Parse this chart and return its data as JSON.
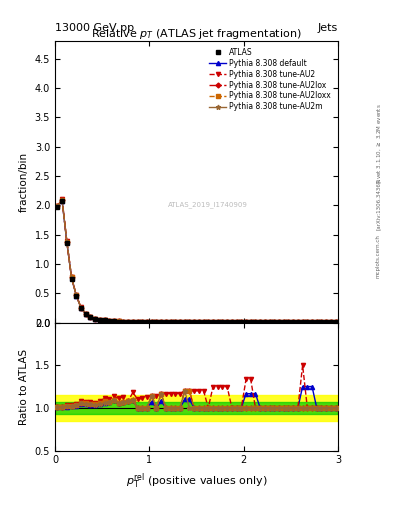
{
  "title": "Relative $p_T$ (ATLAS jet fragmentation)",
  "header_left": "13000 GeV pp",
  "header_right": "Jets",
  "ylabel_main": "fraction/bin",
  "ylabel_ratio": "Ratio to ATLAS",
  "xlabel": "$p_{\\textrm{T}}^{\\textrm{rel}}$ (positive values only)",
  "watermark": "ATLAS_2019_I1740909",
  "ylim_main": [
    0,
    4.8
  ],
  "ylim_ratio": [
    0.5,
    2.0
  ],
  "xlim": [
    0,
    3.0
  ],
  "yticks_main": [
    0.0,
    0.5,
    1.0,
    1.5,
    2.0,
    2.5,
    3.0,
    3.5,
    4.0,
    4.5
  ],
  "yticks_ratio": [
    0.5,
    1.0,
    1.5,
    2.0
  ],
  "xticks": [
    0,
    1,
    2,
    3
  ],
  "x_data": [
    0.025,
    0.075,
    0.125,
    0.175,
    0.225,
    0.275,
    0.325,
    0.375,
    0.425,
    0.475,
    0.525,
    0.575,
    0.625,
    0.675,
    0.725,
    0.775,
    0.825,
    0.875,
    0.925,
    0.975,
    1.025,
    1.075,
    1.125,
    1.175,
    1.225,
    1.275,
    1.325,
    1.375,
    1.425,
    1.475,
    1.525,
    1.575,
    1.625,
    1.675,
    1.725,
    1.775,
    1.825,
    1.875,
    1.925,
    1.975,
    2.025,
    2.075,
    2.125,
    2.175,
    2.225,
    2.275,
    2.325,
    2.375,
    2.425,
    2.475,
    2.525,
    2.575,
    2.625,
    2.675,
    2.725,
    2.775,
    2.825,
    2.875,
    2.925,
    2.975
  ],
  "atlas_y": [
    1.97,
    2.07,
    1.35,
    0.75,
    0.45,
    0.24,
    0.14,
    0.09,
    0.065,
    0.048,
    0.036,
    0.028,
    0.022,
    0.018,
    0.015,
    0.013,
    0.011,
    0.01,
    0.009,
    0.008,
    0.007,
    0.007,
    0.006,
    0.006,
    0.006,
    0.006,
    0.006,
    0.005,
    0.005,
    0.005,
    0.005,
    0.005,
    0.005,
    0.004,
    0.004,
    0.004,
    0.004,
    0.004,
    0.004,
    0.004,
    0.003,
    0.003,
    0.003,
    0.003,
    0.003,
    0.003,
    0.003,
    0.003,
    0.003,
    0.003,
    0.003,
    0.003,
    0.002,
    0.002,
    0.002,
    0.002,
    0.002,
    0.002,
    0.002,
    0.002
  ],
  "pythia_default_y": [
    1.98,
    2.08,
    1.37,
    0.763,
    0.461,
    0.252,
    0.146,
    0.093,
    0.067,
    0.05,
    0.038,
    0.03,
    0.024,
    0.019,
    0.016,
    0.014,
    0.012,
    0.01,
    0.009,
    0.008,
    0.0075,
    0.007,
    0.0065,
    0.006,
    0.006,
    0.006,
    0.006,
    0.0055,
    0.0055,
    0.005,
    0.005,
    0.005,
    0.005,
    0.004,
    0.004,
    0.004,
    0.004,
    0.004,
    0.004,
    0.004,
    0.0035,
    0.0035,
    0.0035,
    0.003,
    0.003,
    0.003,
    0.003,
    0.003,
    0.003,
    0.003,
    0.003,
    0.003,
    0.0025,
    0.0025,
    0.0025,
    0.002,
    0.002,
    0.002,
    0.002,
    0.002
  ],
  "pythia_au2_y": [
    1.99,
    2.1,
    1.39,
    0.775,
    0.473,
    0.258,
    0.15,
    0.096,
    0.069,
    0.052,
    0.04,
    0.031,
    0.025,
    0.02,
    0.017,
    0.014,
    0.013,
    0.011,
    0.01,
    0.009,
    0.008,
    0.008,
    0.007,
    0.007,
    0.007,
    0.007,
    0.007,
    0.006,
    0.006,
    0.006,
    0.006,
    0.006,
    0.005,
    0.005,
    0.005,
    0.005,
    0.005,
    0.004,
    0.004,
    0.004,
    0.004,
    0.004,
    0.003,
    0.003,
    0.003,
    0.003,
    0.003,
    0.003,
    0.003,
    0.003,
    0.003,
    0.003,
    0.003,
    0.002,
    0.002,
    0.002,
    0.002,
    0.002,
    0.002,
    0.002
  ],
  "pythia_au2lox_y": [
    1.98,
    2.09,
    1.38,
    0.77,
    0.465,
    0.254,
    0.148,
    0.094,
    0.068,
    0.051,
    0.039,
    0.03,
    0.024,
    0.019,
    0.016,
    0.014,
    0.012,
    0.01,
    0.009,
    0.008,
    0.008,
    0.007,
    0.007,
    0.006,
    0.006,
    0.006,
    0.006,
    0.006,
    0.006,
    0.005,
    0.005,
    0.005,
    0.005,
    0.004,
    0.004,
    0.004,
    0.004,
    0.004,
    0.004,
    0.004,
    0.003,
    0.003,
    0.003,
    0.003,
    0.003,
    0.003,
    0.003,
    0.003,
    0.003,
    0.003,
    0.003,
    0.003,
    0.002,
    0.002,
    0.002,
    0.002,
    0.002,
    0.002,
    0.002,
    0.002
  ],
  "pythia_au2loxx_y": [
    1.98,
    2.09,
    1.38,
    0.77,
    0.465,
    0.254,
    0.148,
    0.094,
    0.068,
    0.051,
    0.039,
    0.03,
    0.024,
    0.019,
    0.016,
    0.014,
    0.012,
    0.01,
    0.009,
    0.008,
    0.008,
    0.007,
    0.007,
    0.006,
    0.006,
    0.006,
    0.006,
    0.006,
    0.006,
    0.005,
    0.005,
    0.005,
    0.005,
    0.004,
    0.004,
    0.004,
    0.004,
    0.004,
    0.004,
    0.004,
    0.003,
    0.003,
    0.003,
    0.003,
    0.003,
    0.003,
    0.003,
    0.003,
    0.003,
    0.003,
    0.003,
    0.003,
    0.002,
    0.002,
    0.002,
    0.002,
    0.002,
    0.002,
    0.002,
    0.002
  ],
  "pythia_au2m_y": [
    1.98,
    2.09,
    1.38,
    0.768,
    0.464,
    0.253,
    0.147,
    0.094,
    0.067,
    0.05,
    0.038,
    0.03,
    0.024,
    0.019,
    0.016,
    0.014,
    0.012,
    0.01,
    0.009,
    0.008,
    0.008,
    0.007,
    0.007,
    0.006,
    0.006,
    0.006,
    0.006,
    0.006,
    0.005,
    0.005,
    0.005,
    0.005,
    0.005,
    0.004,
    0.004,
    0.004,
    0.004,
    0.004,
    0.004,
    0.004,
    0.003,
    0.003,
    0.003,
    0.003,
    0.003,
    0.003,
    0.003,
    0.003,
    0.003,
    0.003,
    0.003,
    0.003,
    0.002,
    0.002,
    0.002,
    0.002,
    0.002,
    0.002,
    0.002,
    0.002
  ],
  "yellow_band_lo": 0.85,
  "yellow_band_hi": 1.15,
  "green_band_lo": 0.93,
  "green_band_hi": 1.07,
  "color_default": "#0000cc",
  "color_au2": "#cc0000",
  "color_au2lox": "#cc0000",
  "color_au2loxx": "#cc6600",
  "color_au2m": "#996633",
  "color_atlas": "#000000",
  "color_yellow": "#ffff00",
  "color_green": "#00cc00",
  "legend_entries": [
    "ATLAS",
    "Pythia 8.308 default",
    "Pythia 8.308 tune-AU2",
    "Pythia 8.308 tune-AU2lox",
    "Pythia 8.308 tune-AU2loxx",
    "Pythia 8.308 tune-AU2m"
  ]
}
